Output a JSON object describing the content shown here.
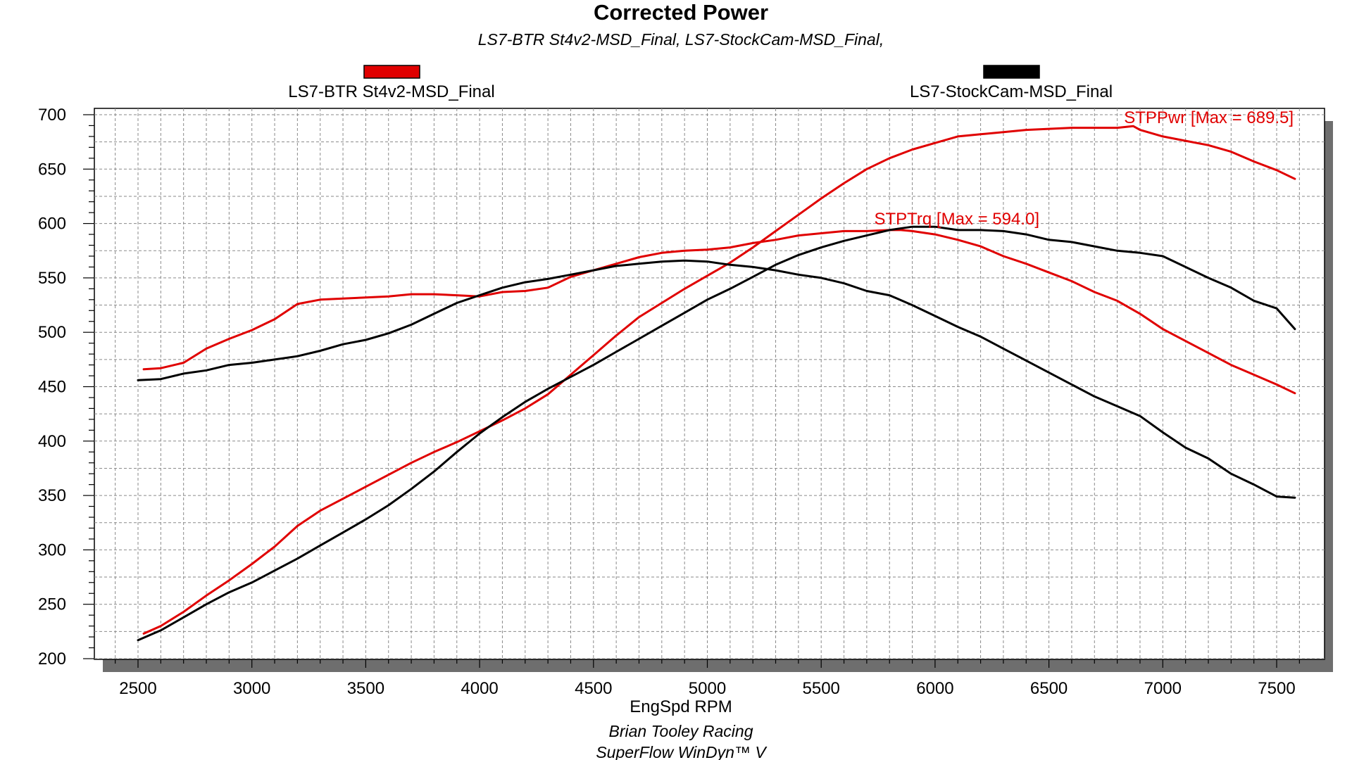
{
  "chart_data": {
    "type": "line",
    "title": "Corrected Power",
    "subtitle": "LS7-BTR St4v2-MSD_Final, LS7-StockCam-MSD_Final,",
    "xlabel": "EngSpd RPM",
    "ylabel": "",
    "xlim": [
      2300,
      7700
    ],
    "ylim": [
      190,
      705
    ],
    "x_ticks": [
      2500,
      3000,
      3500,
      4000,
      4500,
      5000,
      5500,
      6000,
      6500,
      7000,
      7500
    ],
    "y_ticks": [
      200,
      250,
      300,
      350,
      400,
      450,
      500,
      550,
      600,
      650,
      700
    ],
    "grid": true,
    "legend_position": "top",
    "legend": [
      {
        "name": "LS7-BTR St4v2-MSD_Final",
        "color": "#e00000"
      },
      {
        "name": "LS7-StockCam-MSD_Final",
        "color": "#000000"
      }
    ],
    "annotations": [
      {
        "text": "STPPwr [Max = 689.5]",
        "color": "#e00000"
      },
      {
        "text": "STPTrq [Max = 594.0]",
        "color": "#e00000"
      }
    ],
    "footer": [
      "Brian Tooley Racing",
      "SuperFlow WinDyn™ V"
    ],
    "series": [
      {
        "legend_index": 0,
        "quantity": "power",
        "color": "#e00000",
        "x": [
          2525,
          2600,
          2700,
          2800,
          2900,
          3000,
          3100,
          3200,
          3300,
          3400,
          3500,
          3600,
          3700,
          3800,
          3900,
          4000,
          4100,
          4200,
          4300,
          4400,
          4500,
          4600,
          4700,
          4800,
          4900,
          5000,
          5100,
          5200,
          5300,
          5400,
          5500,
          5600,
          5700,
          5800,
          5900,
          6000,
          6100,
          6200,
          6300,
          6400,
          6500,
          6600,
          6700,
          6800,
          6870,
          6900,
          7000,
          7100,
          7200,
          7300,
          7400,
          7500,
          7580
        ],
        "y": [
          223,
          230,
          243,
          258,
          272,
          287,
          303,
          322,
          336,
          347,
          358,
          369,
          380,
          390,
          399,
          409,
          419,
          430,
          443,
          461,
          479,
          497,
          514,
          527,
          540,
          552,
          564,
          578,
          593,
          608,
          623,
          637,
          650,
          660,
          668,
          674,
          680,
          682,
          684,
          686,
          687,
          688,
          688,
          688,
          689.5,
          686,
          680,
          676,
          672,
          666,
          657,
          649,
          641
        ]
      },
      {
        "legend_index": 0,
        "quantity": "torque",
        "color": "#e00000",
        "x": [
          2525,
          2600,
          2700,
          2800,
          2900,
          3000,
          3100,
          3200,
          3300,
          3400,
          3500,
          3600,
          3700,
          3800,
          3900,
          4000,
          4100,
          4200,
          4300,
          4400,
          4500,
          4600,
          4700,
          4800,
          4900,
          5000,
          5100,
          5200,
          5300,
          5400,
          5500,
          5600,
          5700,
          5800,
          5850,
          5900,
          6000,
          6100,
          6200,
          6300,
          6400,
          6500,
          6600,
          6700,
          6800,
          6900,
          7000,
          7100,
          7200,
          7300,
          7400,
          7500,
          7580
        ],
        "y": [
          466,
          467,
          472,
          485,
          494,
          502,
          512,
          526,
          530,
          531,
          532,
          533,
          535,
          535,
          534,
          533,
          537,
          538,
          541,
          551,
          557,
          563,
          569,
          573,
          575,
          576,
          578,
          582,
          585,
          589,
          591,
          593,
          593,
          594,
          594,
          593,
          590,
          585,
          579,
          570,
          563,
          555,
          547,
          537,
          529,
          517,
          503,
          492,
          481,
          470,
          461,
          452,
          444
        ]
      },
      {
        "legend_index": 1,
        "quantity": "power",
        "color": "#000000",
        "x": [
          2500,
          2600,
          2700,
          2800,
          2900,
          3000,
          3100,
          3200,
          3300,
          3400,
          3500,
          3600,
          3700,
          3800,
          3900,
          4000,
          4100,
          4200,
          4300,
          4400,
          4500,
          4600,
          4700,
          4800,
          4900,
          5000,
          5100,
          5200,
          5300,
          5400,
          5500,
          5600,
          5700,
          5800,
          5900,
          6000,
          6100,
          6200,
          6300,
          6400,
          6500,
          6600,
          6700,
          6800,
          6900,
          7000,
          7100,
          7200,
          7300,
          7400,
          7500,
          7580
        ],
        "y": [
          217,
          226,
          238,
          250,
          261,
          270,
          281,
          292,
          304,
          316,
          328,
          341,
          356,
          372,
          390,
          407,
          422,
          436,
          448,
          459,
          470,
          482,
          494,
          506,
          518,
          530,
          540,
          551,
          562,
          571,
          578,
          584,
          589,
          594,
          597,
          597,
          594,
          594,
          593,
          590,
          585,
          583,
          579,
          575,
          573,
          570,
          560,
          550,
          541,
          529,
          522,
          503
        ]
      },
      {
        "legend_index": 1,
        "quantity": "torque",
        "color": "#000000",
        "x": [
          2500,
          2600,
          2700,
          2800,
          2900,
          3000,
          3100,
          3200,
          3300,
          3400,
          3500,
          3600,
          3700,
          3800,
          3900,
          4000,
          4100,
          4200,
          4300,
          4400,
          4500,
          4600,
          4700,
          4800,
          4900,
          5000,
          5100,
          5200,
          5300,
          5400,
          5500,
          5600,
          5700,
          5800,
          5900,
          6000,
          6100,
          6200,
          6300,
          6400,
          6500,
          6600,
          6700,
          6800,
          6900,
          7000,
          7100,
          7200,
          7300,
          7400,
          7500,
          7580
        ],
        "y": [
          456,
          457,
          462,
          465,
          470,
          472,
          475,
          478,
          483,
          489,
          493,
          499,
          507,
          517,
          527,
          534,
          541,
          546,
          549,
          553,
          557,
          561,
          563,
          565,
          566,
          565,
          562,
          560,
          557,
          553,
          550,
          545,
          538,
          534,
          525,
          515,
          505,
          496,
          485,
          474,
          463,
          452,
          441,
          432,
          423,
          408,
          394,
          384,
          370,
          360,
          349,
          348
        ]
      }
    ]
  }
}
